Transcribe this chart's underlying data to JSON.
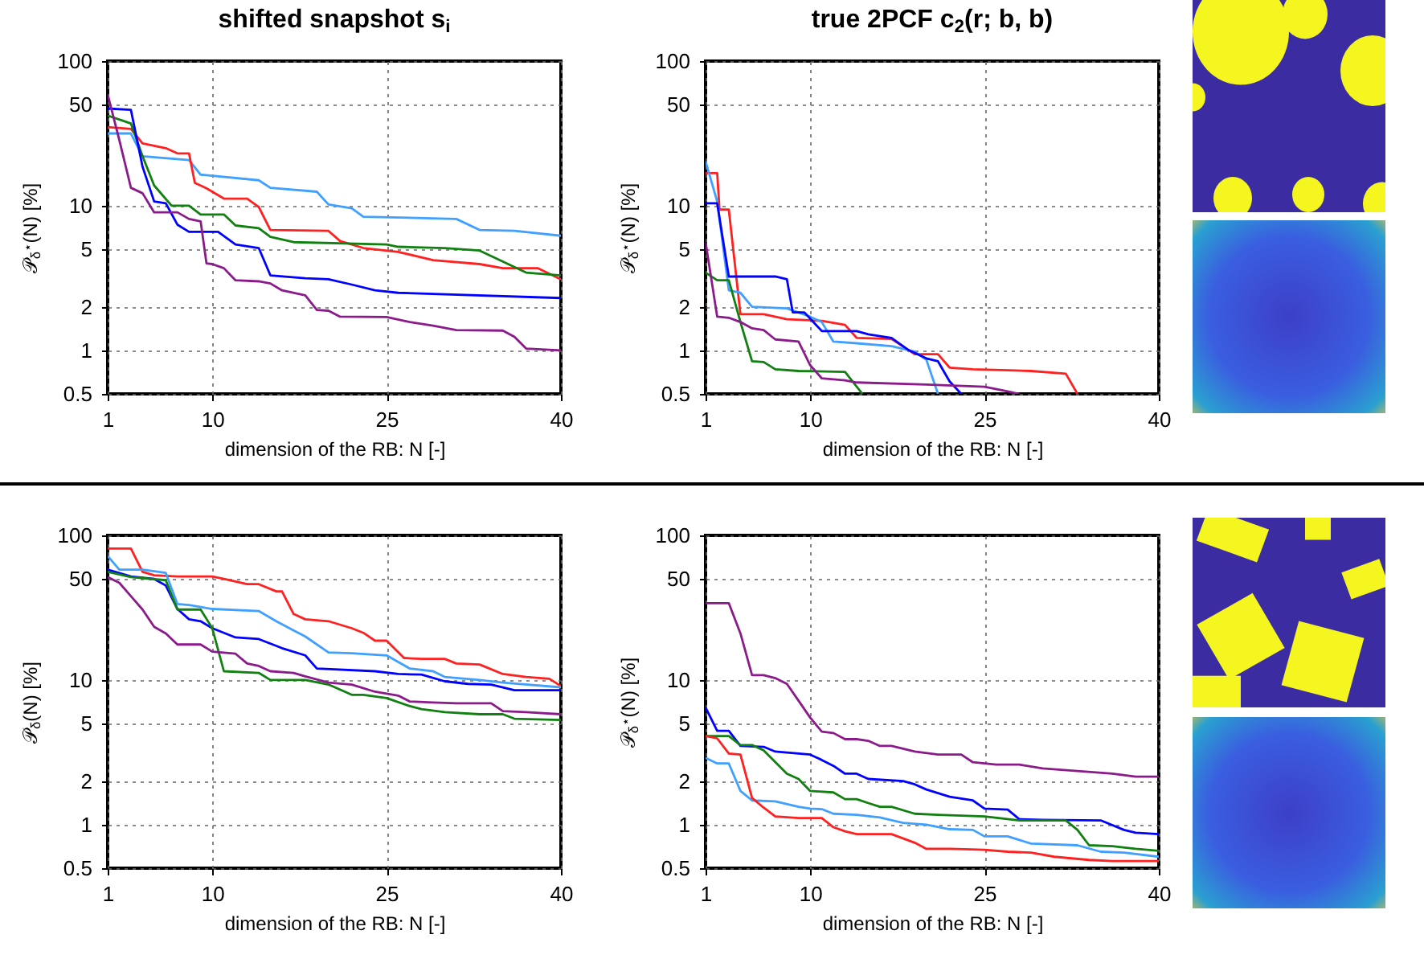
{
  "chart_data": [
    {
      "type": "line",
      "title": "shifted snapshot s$_{i}$",
      "xlabel": "dimension of the RB: N [-]",
      "ylabel": "𝒫$_{δ}$$^{⋆}$(N) [%]",
      "log": true,
      "grid": true,
      "line_style": "solid",
      "xlim": [
        1,
        40
      ],
      "xticks": [
        1,
        10,
        25,
        40
      ],
      "ylim": [
        0.5,
        100
      ],
      "yticks": [
        0.5,
        1,
        2,
        5,
        10,
        50,
        100
      ],
      "series": [
        {
          "color": "#40a0ff",
          "x": [
            1,
            3,
            4,
            8,
            9,
            14,
            15,
            19,
            20,
            22,
            23,
            31,
            33,
            36,
            40
          ],
          "values": [
            31.6,
            31.6,
            22,
            20.7,
            16.4,
            15,
            13.3,
            12.5,
            10.2,
            9.6,
            8.4,
            8.1,
            6.8,
            6.7,
            6.2
          ]
        },
        {
          "color": "#ff2020",
          "x": [
            1,
            3,
            4,
            6,
            7,
            8,
            8.5,
            9.5,
            11,
            13,
            14,
            15,
            20,
            21,
            23,
            26,
            29,
            33,
            35,
            38,
            40
          ],
          "values": [
            35,
            34,
            27,
            25,
            23,
            23,
            14.4,
            13.2,
            11.2,
            11.2,
            9.8,
            6.8,
            6.7,
            5.7,
            5.1,
            4.8,
            4.2,
            3.95,
            3.7,
            3.7,
            3.1
          ]
        },
        {
          "color": "#108010",
          "x": [
            1,
            3,
            4,
            5,
            6.5,
            8,
            9,
            11,
            12,
            14,
            15,
            17,
            25,
            26,
            30,
            33,
            37,
            40
          ],
          "values": [
            42,
            37,
            22,
            13.8,
            10,
            10,
            8.7,
            8.7,
            7.3,
            7,
            6.1,
            5.6,
            5.4,
            5.2,
            5.1,
            4.9,
            3.45,
            3.3
          ]
        },
        {
          "color": "#0000ff",
          "x": [
            1,
            3,
            4,
            5,
            6,
            7,
            8,
            10.5,
            12,
            14,
            15,
            18,
            20,
            22,
            24,
            26,
            40
          ],
          "values": [
            47,
            46,
            18.6,
            10.7,
            10.4,
            7.4,
            6.6,
            6.6,
            5.4,
            5.1,
            3.3,
            3.15,
            3.1,
            2.85,
            2.6,
            2.5,
            2.3
          ]
        },
        {
          "color": "#8b1a8b",
          "x": [
            1,
            2,
            3,
            4,
            5,
            7,
            8,
            9,
            9.5,
            10,
            11,
            12,
            14,
            15,
            16,
            18,
            19,
            20,
            21,
            25,
            27,
            29,
            31,
            35,
            36,
            37,
            40
          ],
          "values": [
            59,
            28.5,
            13.3,
            12.2,
            9,
            9,
            8.1,
            7.8,
            4,
            3.95,
            3.7,
            3.05,
            3,
            2.9,
            2.6,
            2.4,
            1.9,
            1.88,
            1.71,
            1.7,
            1.57,
            1.48,
            1.38,
            1.37,
            1.24,
            1.03,
            1.0
          ]
        }
      ]
    },
    {
      "type": "line",
      "title": "true 2PCF c$_{2}$(r; b, b)",
      "xlabel": "dimension of the RB: N [-]",
      "ylabel": "𝒫$_{δ}$$^{⋆}$(N) [%]",
      "log": true,
      "grid": true,
      "line_style": "solid",
      "xlim": [
        1,
        40
      ],
      "xticks": [
        1,
        10,
        25,
        40
      ],
      "ylim": [
        0.5,
        100
      ],
      "yticks": [
        0.5,
        1,
        2,
        5,
        10,
        50,
        100
      ],
      "series": [
        {
          "color": "#ff2020",
          "x": [
            1,
            2,
            2.2,
            3,
            4,
            6,
            8,
            11,
            13,
            14,
            17,
            19,
            21,
            22,
            24,
            29,
            32,
            33
          ],
          "values": [
            16.8,
            16.8,
            9.4,
            9.4,
            1.78,
            1.78,
            1.64,
            1.6,
            1.5,
            1.22,
            1.2,
            0.94,
            0.94,
            0.76,
            0.74,
            0.72,
            0.69,
            0.5
          ]
        },
        {
          "color": "#40a0ff",
          "x": [
            1,
            2,
            3,
            4,
            5,
            8,
            10,
            11,
            12,
            14,
            17,
            19,
            20,
            21
          ],
          "values": [
            20.3,
            10.7,
            2.6,
            2.5,
            2,
            1.95,
            1.71,
            1.57,
            1.15,
            1.12,
            1.07,
            0.98,
            0.86,
            0.5
          ]
        },
        {
          "color": "#0000ff",
          "x": [
            1,
            2,
            3,
            7,
            8,
            8.5,
            9.5,
            11,
            14,
            15,
            17,
            18.5,
            20,
            21,
            22,
            23
          ],
          "values": [
            10.4,
            10.4,
            3.24,
            3.24,
            3.1,
            1.83,
            1.83,
            1.36,
            1.36,
            1.29,
            1.22,
            1.0,
            0.88,
            0.84,
            0.61,
            0.5
          ]
        },
        {
          "color": "#108010",
          "x": [
            1,
            2,
            3,
            4,
            5,
            6,
            7,
            9,
            13,
            14.5
          ],
          "values": [
            3.45,
            3.05,
            3.05,
            1.57,
            0.84,
            0.83,
            0.74,
            0.72,
            0.71,
            0.5
          ]
        },
        {
          "color": "#8b1a8b",
          "x": [
            1,
            2,
            3,
            4,
            5,
            6,
            7,
            9,
            10,
            11,
            13,
            14,
            20,
            25,
            27,
            28
          ],
          "values": [
            5.6,
            1.71,
            1.68,
            1.57,
            1.42,
            1.38,
            1.19,
            1.15,
            0.79,
            0.64,
            0.62,
            0.6,
            0.58,
            0.56,
            0.52,
            0.5
          ]
        }
      ]
    },
    {
      "type": "line",
      "xlabel": "dimension of the RB: N [-]",
      "ylabel": "𝒫$_{δ}$(N) [%]",
      "log": true,
      "grid": true,
      "line_style": "solid",
      "xlim": [
        1,
        40
      ],
      "xticks": [
        1,
        10,
        25,
        40
      ],
      "ylim": [
        0.5,
        100
      ],
      "yticks": [
        0.5,
        1,
        2,
        5,
        10,
        50,
        100
      ],
      "series": [
        {
          "color": "#ff2020",
          "x": [
            1,
            3,
            4,
            5,
            7,
            10,
            11,
            13,
            14,
            15.5,
            16,
            17,
            18,
            20,
            22,
            23,
            24,
            25,
            26.5,
            28,
            30,
            31,
            33,
            35,
            37,
            39,
            40
          ],
          "values": [
            81,
            81,
            56,
            53,
            52,
            52,
            50,
            46,
            46,
            41,
            41,
            28.6,
            26.3,
            25.5,
            22.8,
            21.2,
            18.7,
            18.7,
            14.2,
            14,
            14,
            13,
            12.8,
            11,
            10.5,
            10.2,
            9.1
          ]
        },
        {
          "color": "#40a0ff",
          "x": [
            1,
            2,
            4,
            6,
            7,
            8,
            10,
            14,
            15.5,
            17,
            18,
            20,
            22,
            25,
            27,
            29,
            30,
            33,
            35,
            40
          ],
          "values": [
            72,
            58,
            58,
            55,
            33.5,
            33,
            31,
            30,
            25.5,
            22,
            20,
            15.5,
            15.3,
            14.8,
            12,
            11.5,
            10.5,
            10,
            9.6,
            8.9
          ]
        },
        {
          "color": "#0000ff",
          "x": [
            1,
            3,
            5,
            6,
            7,
            8,
            9,
            10,
            12,
            14,
            16,
            18,
            19,
            24,
            26,
            28,
            30,
            32,
            34,
            36,
            40
          ],
          "values": [
            58,
            52,
            50,
            45,
            31,
            26.3,
            25.5,
            22.8,
            19.7,
            19.2,
            16.6,
            14.8,
            12,
            11.5,
            11,
            10.9,
            9.8,
            9.4,
            9.3,
            8.5,
            8.5
          ]
        },
        {
          "color": "#108010",
          "x": [
            1,
            3,
            6,
            7,
            9,
            10,
            11,
            14,
            15,
            18,
            20,
            22,
            23,
            25,
            27,
            28,
            30,
            33,
            35,
            36,
            40
          ],
          "values": [
            56,
            51.5,
            49,
            30.7,
            30.7,
            22.8,
            11.5,
            11.2,
            10,
            10,
            9.3,
            7.9,
            7.9,
            7.5,
            6.6,
            6.3,
            6.0,
            5.8,
            5.8,
            5.4,
            5.3
          ]
        },
        {
          "color": "#8b1a8b",
          "x": [
            1,
            2,
            3,
            4,
            5,
            6,
            7,
            9,
            10,
            12,
            13,
            14,
            15,
            17,
            18,
            20,
            22,
            24,
            26,
            27,
            29,
            31,
            34,
            35,
            37,
            40
          ],
          "values": [
            51.5,
            47,
            38,
            30.7,
            23.3,
            21,
            17.6,
            17.6,
            15.7,
            15.2,
            13,
            12.5,
            11.5,
            11.2,
            10.6,
            9.6,
            9.3,
            8.3,
            7.8,
            7.1,
            7,
            6.9,
            6.9,
            6.1,
            6.0,
            5.8
          ]
        }
      ]
    },
    {
      "type": "line",
      "xlabel": "dimension of the RB: N [-]",
      "ylabel": "𝒫$_{δ}$$^{⋆}$(N) [%]",
      "log": true,
      "grid": true,
      "line_style": "solid",
      "xlim": [
        1,
        40
      ],
      "xticks": [
        1,
        10,
        25,
        40
      ],
      "ylim": [
        0.5,
        100
      ],
      "yticks": [
        0.5,
        1,
        2,
        5,
        10,
        50,
        100
      ],
      "series": [
        {
          "color": "#8b1a8b",
          "x": [
            1,
            3,
            4,
            5,
            6,
            7,
            8,
            9,
            10,
            11,
            12,
            13,
            14,
            15,
            16,
            17,
            19,
            21,
            23,
            24,
            26,
            28,
            30,
            33,
            36,
            38,
            40
          ],
          "values": [
            34,
            34,
            21,
            10.8,
            10.8,
            10.3,
            9.4,
            7.2,
            5.5,
            4.4,
            4.3,
            3.9,
            3.9,
            3.8,
            3.5,
            3.5,
            3.2,
            3.05,
            3.05,
            2.7,
            2.6,
            2.6,
            2.45,
            2.35,
            2.25,
            2.15,
            2.15
          ]
        },
        {
          "color": "#0000ff",
          "x": [
            1,
            2,
            3,
            4,
            6,
            7,
            9,
            10,
            11,
            12,
            13,
            14,
            15,
            18,
            19,
            20,
            22,
            24,
            25,
            27,
            28,
            30,
            35,
            37,
            38,
            40
          ],
          "values": [
            6.45,
            4.45,
            4.45,
            3.5,
            3.45,
            3.2,
            3.1,
            3.05,
            2.8,
            2.55,
            2.25,
            2.25,
            2.07,
            2.0,
            1.9,
            1.75,
            1.56,
            1.47,
            1.29,
            1.27,
            1.09,
            1.08,
            1.07,
            0.92,
            0.88,
            0.86
          ]
        },
        {
          "color": "#108010",
          "x": [
            1,
            3,
            4,
            5,
            6,
            8,
            9,
            10,
            12,
            13,
            14,
            15,
            16,
            17,
            19,
            21,
            25,
            28,
            32,
            33,
            34,
            36,
            38,
            40
          ],
          "values": [
            4.1,
            4.1,
            3.55,
            3.55,
            3.26,
            2.25,
            2.07,
            1.71,
            1.67,
            1.5,
            1.5,
            1.41,
            1.33,
            1.33,
            1.19,
            1.17,
            1.14,
            1.07,
            1.07,
            0.92,
            0.72,
            0.71,
            0.68,
            0.66
          ]
        },
        {
          "color": "#40a0ff",
          "x": [
            1,
            2,
            3,
            4,
            5,
            7,
            9,
            10,
            11,
            12,
            14,
            16,
            18,
            20,
            22,
            24,
            25,
            27,
            29,
            33,
            35,
            37,
            40
          ],
          "values": [
            2.9,
            2.65,
            2.65,
            1.71,
            1.47,
            1.45,
            1.33,
            1.29,
            1.28,
            1.19,
            1.17,
            1.12,
            1.03,
            1.0,
            0.93,
            0.92,
            0.83,
            0.83,
            0.74,
            0.72,
            0.65,
            0.64,
            0.6
          ]
        },
        {
          "color": "#ff2020",
          "x": [
            1,
            2,
            3,
            4,
            5,
            6,
            7,
            9,
            11,
            12,
            13,
            14,
            17,
            19,
            20,
            22,
            25,
            27,
            29,
            31,
            34,
            36,
            40
          ],
          "values": [
            4.1,
            3.95,
            3.1,
            3.05,
            1.53,
            1.31,
            1.14,
            1.11,
            1.11,
            0.96,
            0.9,
            0.86,
            0.86,
            0.75,
            0.68,
            0.68,
            0.67,
            0.65,
            0.64,
            0.6,
            0.57,
            0.56,
            0.56
          ]
        }
      ]
    }
  ]
}
